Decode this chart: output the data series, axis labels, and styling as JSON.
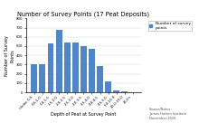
{
  "title": "Number of Survey Points (17 Peat Deposits)",
  "xlabel": "Depth of Peat at Survey Point",
  "ylabel": "Number of Survey\nPoints",
  "categories": [
    "Under 0.5",
    "0.5-1.0",
    "1.0-1.5",
    "1.5-2.0",
    "2.0-2.5",
    "2.5-3.0",
    "3.0-3.5",
    "3.5-4.0",
    "4.0-4.5",
    "4.5-5.0",
    "5.0-10.0",
    "10.0-15.0",
    "15.0+"
  ],
  "values": [
    300,
    300,
    530,
    680,
    540,
    540,
    500,
    470,
    280,
    120,
    20,
    5,
    2
  ],
  "bar_color": "#4E86C8",
  "ylim": [
    0,
    800
  ],
  "yticks": [
    0,
    100,
    200,
    300,
    400,
    500,
    600,
    700,
    800
  ],
  "legend_label": "Number of survey\npoints",
  "source_line1": "Source/Notes:",
  "source_line2": "James Hutton Institute",
  "source_line3": "November 2016",
  "title_fontsize": 4.8,
  "axis_label_fontsize": 3.5,
  "tick_fontsize": 2.8,
  "legend_fontsize": 3.2,
  "source_fontsize": 2.6,
  "background_color": "#ffffff"
}
